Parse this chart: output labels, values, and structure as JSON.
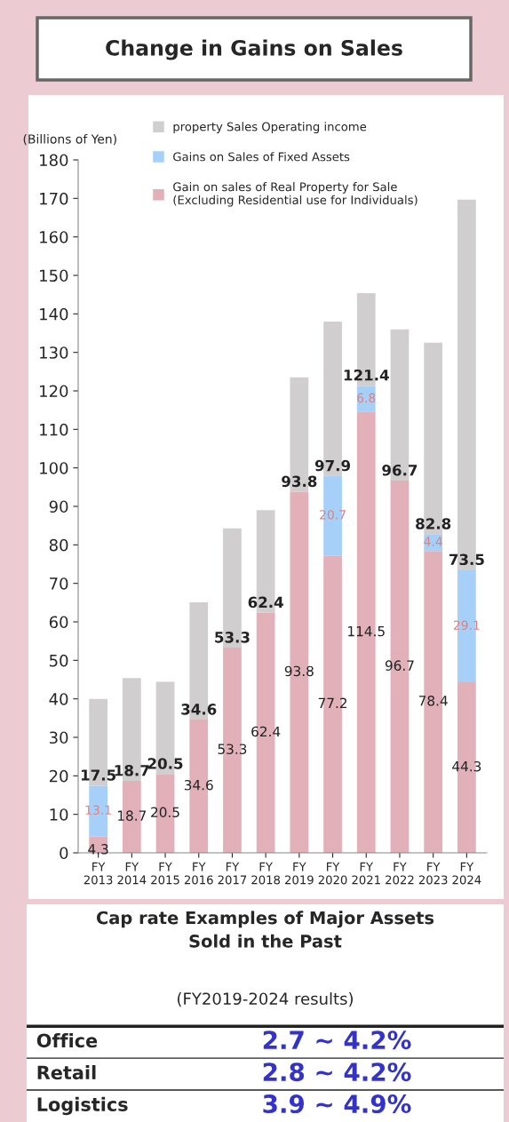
{
  "chart_data": [
    {
      "type": "bar",
      "title": "Change in Gains on Sales",
      "ylabel": "(Billions of Yen)",
      "stacked": true,
      "legend": "top",
      "categories": [
        "FY\n2013",
        "FY\n2014",
        "FY\n2015",
        "FY\n2016",
        "FY\n2017",
        "FY\n2018",
        "FY\n2019",
        "FY\n2020",
        "FY\n2021",
        "FY\n2022",
        "FY\n2023",
        "FY\n2024"
      ],
      "series": [
        {
          "name": "Gain on sales of Real Property for Sale\n(Excluding Residential use for Individuals)",
          "color": "#e2b0b8",
          "values": [
            4.3,
            18.7,
            20.5,
            34.6,
            53.3,
            62.4,
            93.8,
            77.2,
            114.5,
            96.7,
            78.4,
            44.3
          ],
          "value_labels": [
            "4.3",
            "18.7",
            "20.5",
            "34.6",
            "53.3",
            "62.4",
            "93.8",
            "77.2",
            "114.5",
            "96.7",
            "78.4",
            "44.3"
          ]
        },
        {
          "name": "Gains on Sales of Fixed Assets",
          "color": "#a6d0f7",
          "values": [
            13.1,
            0,
            0,
            0,
            0,
            0,
            0,
            20.7,
            6.8,
            0,
            4.4,
            29.1
          ],
          "value_labels": [
            "13.1",
            null,
            null,
            null,
            null,
            null,
            null,
            "20.7",
            "6.8",
            null,
            "4.4",
            "29.1"
          ]
        },
        {
          "name": "property Sales Operating income",
          "color": "#d0cecf",
          "values": [
            22.6,
            26.7,
            23.9,
            30.5,
            31,
            26.6,
            29.7,
            40.1,
            24.1,
            39.3,
            49.7,
            96.3
          ]
        }
      ],
      "annotations": [
        {
          "text": "17.5",
          "x": "FY\n2013",
          "y": 17.5
        },
        {
          "text": "18.7",
          "x": "FY\n2014",
          "y": 18.7
        },
        {
          "text": "20.5",
          "x": "FY\n2015",
          "y": 20.5
        },
        {
          "text": "34.6",
          "x": "FY\n2016",
          "y": 34.6
        },
        {
          "text": "53.3",
          "x": "FY\n2017",
          "y": 53.3
        },
        {
          "text": "62.4",
          "x": "FY\n2018",
          "y": 62.4
        },
        {
          "text": "93.8",
          "x": "FY\n2019",
          "y": 93.8
        },
        {
          "text": "97.9",
          "x": "FY\n2020",
          "y": 97.9
        },
        {
          "text": "121.4",
          "x": "FY\n2021",
          "y": 121.4
        },
        {
          "text": "96.7",
          "x": "FY\n2022",
          "y": 96.7
        },
        {
          "text": "82.8",
          "x": "FY\n2023",
          "y": 82.8
        },
        {
          "text": "73.5",
          "x": "FY\n2024",
          "y": 73.5
        }
      ],
      "ylim": [
        0,
        180
      ],
      "yticks": [
        0,
        10,
        20,
        30,
        40,
        50,
        60,
        70,
        80,
        90,
        100,
        110,
        120,
        130,
        140,
        150,
        160,
        170,
        180
      ]
    },
    {
      "type": "other",
      "title": "Cap rate Examples of Major Assets\nSold in the Past",
      "subtitle": "(FY2019-2024 results)",
      "annotations": [
        "Office",
        "2.7 ~ 4.2%",
        "Retail",
        "2.8 ~ 4.2%",
        "Logistics",
        "3.9 ~ 4.9%"
      ]
    }
  ]
}
